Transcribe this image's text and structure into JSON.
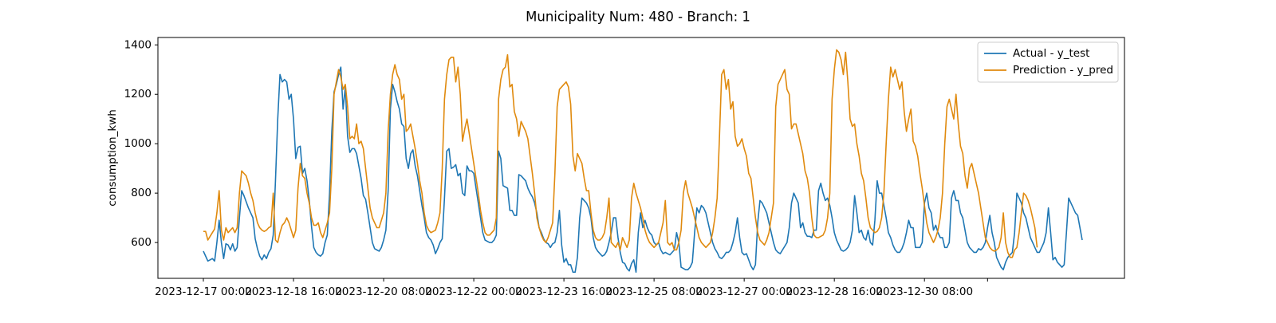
{
  "chart_data": {
    "type": "line",
    "title": "Municipality Num: 480 - Branch: 1",
    "xlabel": "",
    "ylabel": "consumption_kwh",
    "x_start": "2023-12-17 00:00",
    "x_step_hours": 1,
    "ylim": [
      455,
      1430
    ],
    "yticks": [
      600,
      800,
      1000,
      1200,
      1400
    ],
    "ytick_labels": [
      "600",
      "800",
      "1000",
      "1200",
      "1400"
    ],
    "xticks": [
      "2023-12-17 00:00",
      "2023-12-18 16:00",
      "2023-12-20 08:00",
      "2023-12-22 00:00",
      "2023-12-23 16:00",
      "2023-12-25 08:00",
      "2023-12-27 00:00",
      "2023-12-28 16:00",
      "2023-12-30 08:00",
      "2023-12-31 12:00"
    ],
    "xtick_labels": [
      "2023-12-17 00:00",
      "2023-12-18 16:00",
      "2023-12-20 08:00",
      "2023-12-22 00:00",
      "2023-12-23 16:00",
      "2023-12-25 08:00",
      "2023-12-27 00:00",
      "2023-12-28 16:00",
      "2023-12-30 08:00",
      ""
    ],
    "legend_position": "upper right",
    "grid": false,
    "series": [
      {
        "name": "Actual - y_test",
        "color": "#1f77b4",
        "values": [
          565,
          545,
          525,
          530,
          535,
          525,
          600,
          690,
          600,
          535,
          595,
          590,
          570,
          595,
          565,
          580,
          700,
          810,
          790,
          765,
          740,
          720,
          700,
          615,
          575,
          545,
          530,
          550,
          535,
          560,
          575,
          630,
          850,
          1100,
          1280,
          1250,
          1260,
          1250,
          1180,
          1200,
          1100,
          940,
          985,
          990,
          880,
          900,
          850,
          770,
          665,
          580,
          560,
          550,
          545,
          555,
          600,
          630,
          800,
          1050,
          1210,
          1240,
          1280,
          1310,
          1140,
          1230,
          1030,
          965,
          980,
          980,
          960,
          910,
          860,
          790,
          775,
          720,
          660,
          600,
          575,
          570,
          565,
          580,
          610,
          650,
          810,
          1140,
          1240,
          1210,
          1170,
          1140,
          1080,
          1070,
          940,
          900,
          960,
          975,
          910,
          870,
          810,
          750,
          700,
          640,
          620,
          610,
          590,
          555,
          575,
          600,
          615,
          780,
          970,
          980,
          900,
          905,
          915,
          870,
          880,
          800,
          790,
          910,
          890,
          890,
          880,
          820,
          760,
          700,
          640,
          610,
          605,
          600,
          600,
          610,
          630,
          970,
          940,
          830,
          825,
          820,
          730,
          730,
          710,
          710,
          875,
          870,
          860,
          850,
          820,
          800,
          785,
          760,
          720,
          660,
          640,
          615,
          600,
          595,
          580,
          595,
          600,
          640,
          730,
          590,
          520,
          535,
          510,
          510,
          480,
          480,
          540,
          700,
          780,
          770,
          760,
          740,
          700,
          620,
          580,
          565,
          555,
          545,
          550,
          565,
          600,
          640,
          700,
          700,
          620,
          560,
          520,
          515,
          495,
          485,
          515,
          530,
          480,
          640,
          720,
          660,
          690,
          660,
          640,
          630,
          600,
          590,
          600,
          570,
          555,
          560,
          555,
          550,
          560,
          570,
          640,
          600,
          500,
          495,
          490,
          490,
          500,
          520,
          640,
          740,
          720,
          750,
          740,
          720,
          680,
          640,
          600,
          575,
          560,
          540,
          535,
          545,
          560,
          560,
          570,
          600,
          640,
          700,
          620,
          560,
          550,
          555,
          530,
          505,
          490,
          510,
          680,
          770,
          760,
          740,
          720,
          680,
          640,
          600,
          570,
          560,
          555,
          570,
          585,
          600,
          660,
          760,
          800,
          780,
          760,
          660,
          680,
          640,
          625,
          625,
          620,
          650,
          650,
          810,
          840,
          800,
          770,
          780,
          750,
          700,
          640,
          610,
          590,
          570,
          565,
          570,
          580,
          600,
          650,
          790,
          720,
          640,
          650,
          620,
          610,
          650,
          600,
          590,
          690,
          850,
          800,
          800,
          750,
          700,
          640,
          620,
          590,
          570,
          560,
          560,
          575,
          600,
          640,
          690,
          660,
          660,
          580,
          580,
          580,
          600,
          760,
          800,
          740,
          720,
          650,
          670,
          640,
          620,
          620,
          580,
          580,
          600,
          780,
          810,
          770,
          770,
          720,
          700,
          650,
          600,
          580,
          570,
          560,
          560,
          575,
          570,
          580,
          600,
          660,
          710,
          640,
          600,
          540,
          520,
          500,
          490,
          520,
          540,
          550,
          560,
          640,
          800,
          780,
          760,
          720,
          700,
          660,
          620,
          600,
          580,
          560,
          560,
          580,
          600,
          640,
          740,
          640,
          530,
          540,
          520,
          510,
          500,
          510,
          640,
          780,
          760,
          740,
          720,
          710,
          660,
          610
        ]
      },
      {
        "name": "Prediction - y_pred",
        "color": "#e08a0e",
        "values": [
          645,
          645,
          610,
          625,
          640,
          655,
          720,
          810,
          650,
          610,
          660,
          640,
          650,
          660,
          640,
          660,
          800,
          890,
          880,
          870,
          840,
          800,
          770,
          720,
          680,
          660,
          650,
          645,
          650,
          660,
          665,
          800,
          610,
          600,
          640,
          670,
          680,
          700,
          680,
          650,
          620,
          650,
          820,
          920,
          870,
          860,
          800,
          760,
          700,
          670,
          670,
          680,
          640,
          620,
          650,
          680,
          720,
          900,
          1200,
          1250,
          1300,
          1270,
          1220,
          1240,
          1150,
          1020,
          1030,
          1020,
          1080,
          1000,
          1010,
          980,
          900,
          820,
          740,
          700,
          680,
          660,
          660,
          690,
          720,
          800,
          1050,
          1200,
          1280,
          1320,
          1280,
          1260,
          1180,
          1200,
          1050,
          1060,
          1080,
          1030,
          980,
          920,
          850,
          800,
          720,
          670,
          650,
          640,
          645,
          650,
          680,
          720,
          900,
          1180,
          1280,
          1340,
          1350,
          1350,
          1250,
          1310,
          1200,
          1010,
          1060,
          1100,
          1040,
          980,
          920,
          860,
          800,
          730,
          680,
          640,
          630,
          630,
          640,
          650,
          700,
          1180,
          1260,
          1300,
          1310,
          1360,
          1230,
          1240,
          1130,
          1100,
          1030,
          1090,
          1070,
          1050,
          1020,
          950,
          880,
          800,
          700,
          660,
          630,
          610,
          600,
          620,
          650,
          680,
          880,
          1150,
          1220,
          1230,
          1240,
          1250,
          1230,
          1160,
          950,
          890,
          960,
          940,
          920,
          860,
          810,
          810,
          720,
          650,
          620,
          610,
          610,
          620,
          640,
          700,
          780,
          600,
          590,
          580,
          600,
          570,
          620,
          600,
          580,
          610,
          780,
          840,
          800,
          770,
          740,
          700,
          650,
          620,
          600,
          590,
          580,
          590,
          600,
          640,
          680,
          770,
          600,
          590,
          600,
          570,
          570,
          600,
          650,
          800,
          850,
          800,
          770,
          740,
          700,
          660,
          620,
          600,
          590,
          580,
          590,
          600,
          640,
          700,
          780,
          1020,
          1280,
          1300,
          1220,
          1260,
          1140,
          1170,
          1030,
          990,
          1000,
          1020,
          980,
          950,
          880,
          860,
          780,
          700,
          640,
          610,
          600,
          590,
          610,
          640,
          700,
          760,
          1150,
          1240,
          1260,
          1280,
          1300,
          1220,
          1200,
          1060,
          1080,
          1080,
          1040,
          1000,
          960,
          890,
          860,
          800,
          700,
          630,
          620,
          620,
          625,
          630,
          650,
          700,
          800,
          1180,
          1300,
          1380,
          1370,
          1340,
          1280,
          1370,
          1250,
          1100,
          1070,
          1080,
          1000,
          950,
          880,
          850,
          780,
          700,
          660,
          650,
          640,
          645,
          660,
          700,
          800,
          1000,
          1180,
          1310,
          1270,
          1300,
          1260,
          1220,
          1250,
          1130,
          1050,
          1100,
          1140,
          1010,
          990,
          950,
          880,
          820,
          750,
          680,
          640,
          620,
          600,
          620,
          650,
          700,
          800,
          1000,
          1150,
          1180,
          1140,
          1100,
          1200,
          1080,
          990,
          960,
          870,
          820,
          900,
          920,
          880,
          840,
          800,
          740,
          680,
          620,
          600,
          580,
          570,
          565,
          570,
          580,
          620,
          720,
          600,
          560,
          540,
          540,
          570,
          580,
          640,
          720,
          800,
          790,
          770,
          740,
          700,
          660,
          580
        ]
      }
    ]
  }
}
